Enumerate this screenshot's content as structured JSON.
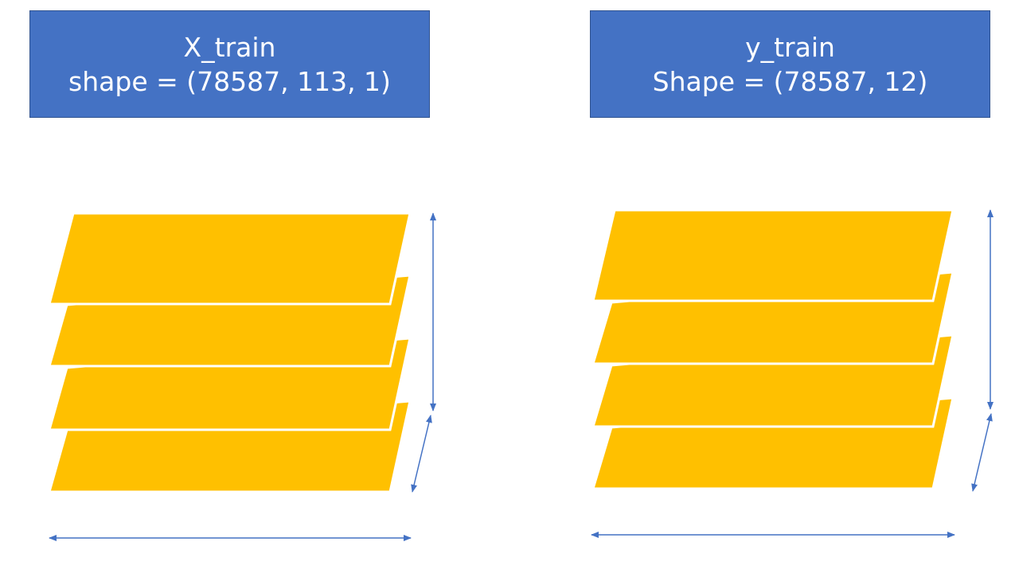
{
  "panels": [
    {
      "id": "x-train",
      "title": "X_train",
      "shape_text": "shape = (78587, 113, 1)"
    },
    {
      "id": "y-train",
      "title": "y_train",
      "shape_text": "Shape = (78587, 12)"
    }
  ],
  "colors": {
    "box_fill": "#4472C4",
    "box_border": "#2F528F",
    "box_text": "#FFFFFF",
    "layer_fill": "#FFC000",
    "arrow": "#4472C4"
  },
  "layers_per_stack": 4
}
